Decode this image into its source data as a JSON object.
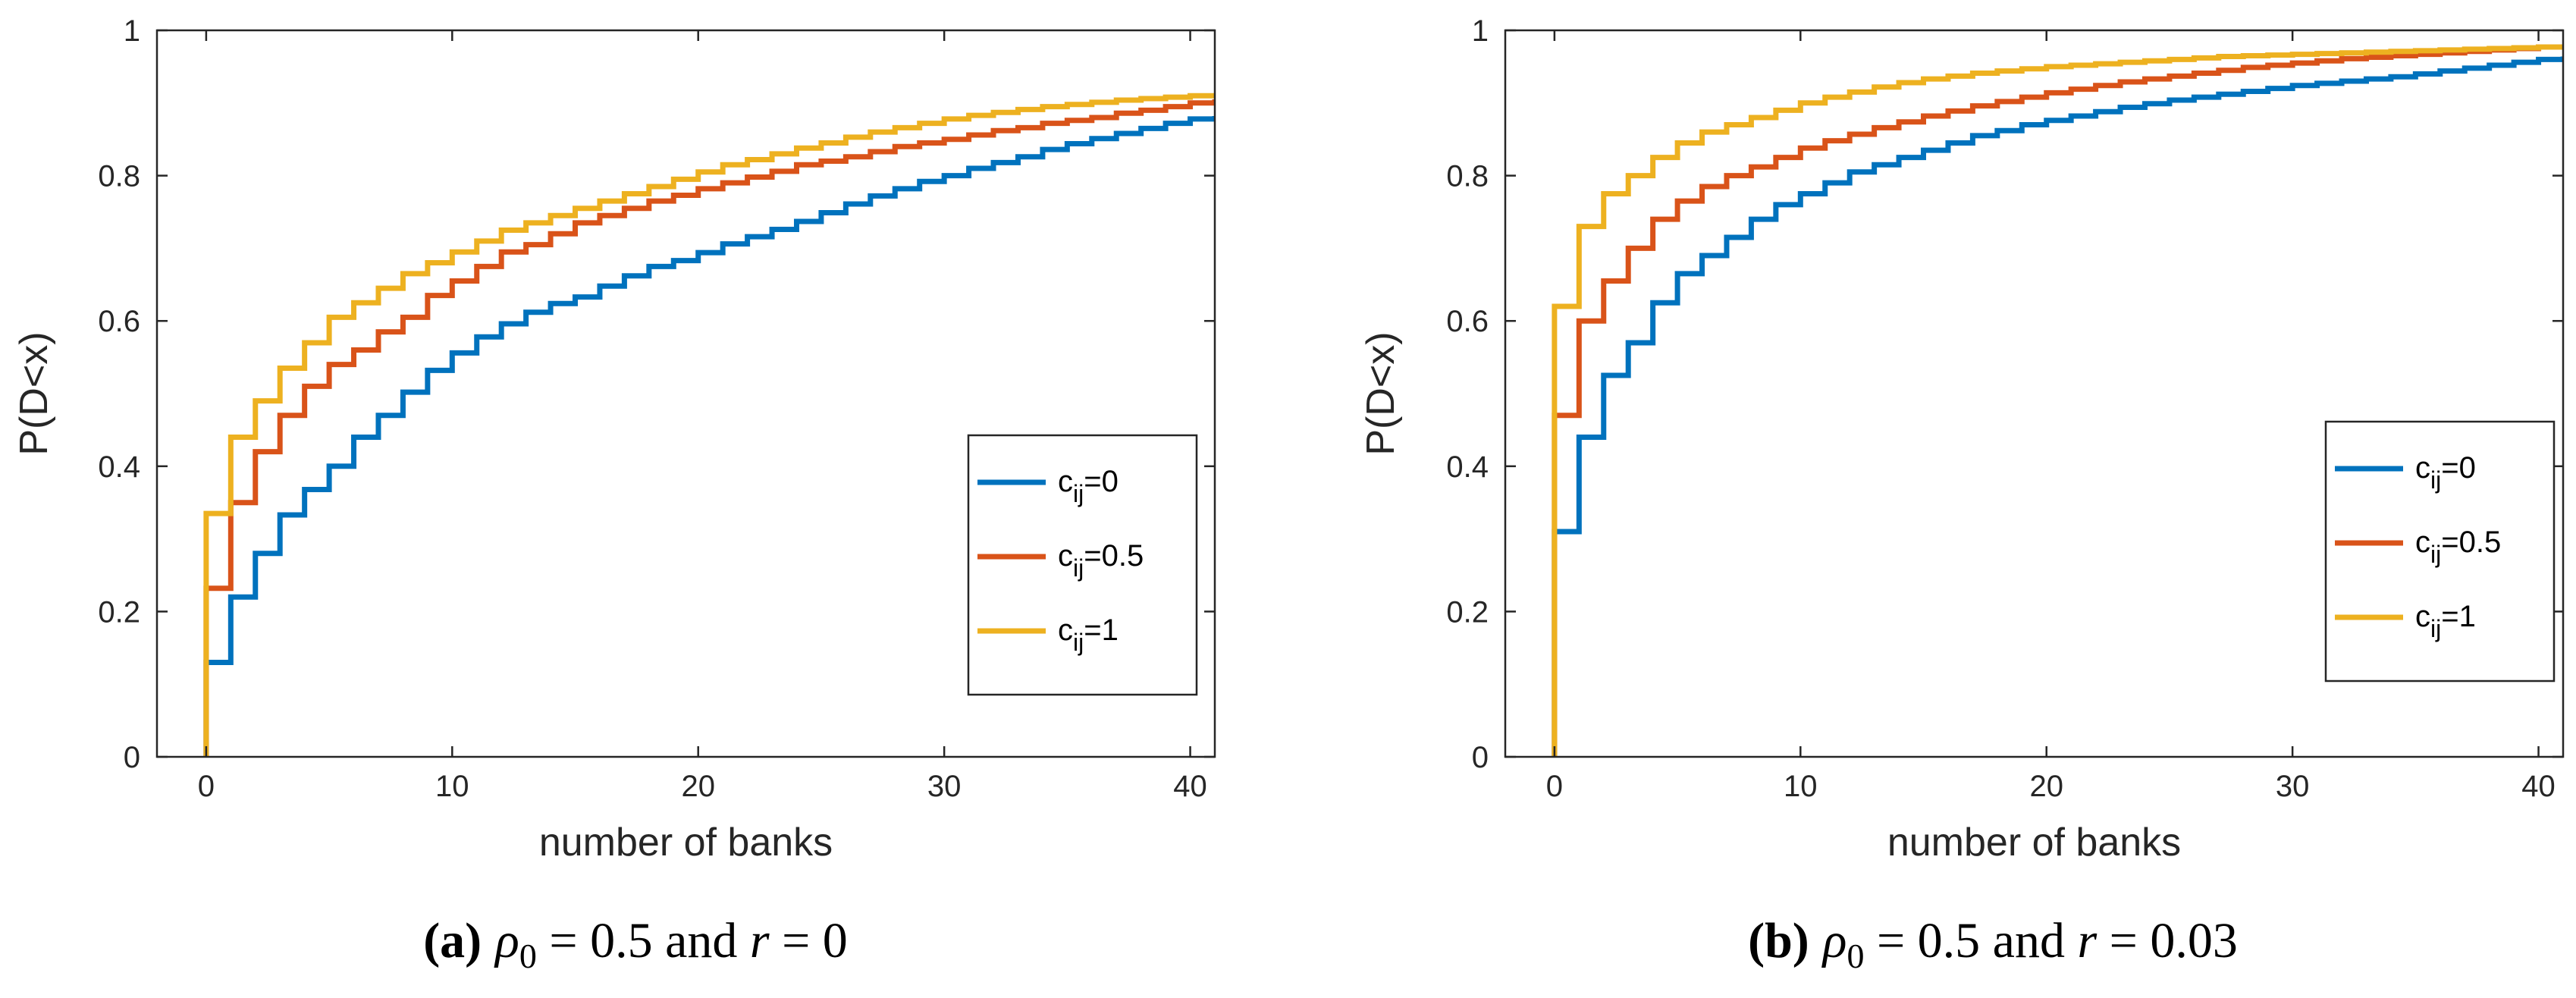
{
  "chart_data": [
    {
      "type": "line",
      "step": true,
      "caption": {
        "label": "(a)",
        "text_parts": [
          "ρ",
          "0",
          " = 0.5 and ",
          "r",
          " = 0"
        ]
      },
      "xlabel": "number of banks",
      "ylabel": "P(D<x)",
      "xlim": [
        -2,
        41
      ],
      "ylim": [
        0,
        1
      ],
      "xticks": [
        0,
        10,
        20,
        30,
        40
      ],
      "yticks": [
        0,
        0.2,
        0.4,
        0.6,
        0.8,
        1
      ],
      "ytick_labels": [
        "0",
        "0.2",
        "0.4",
        "0.6",
        "0.8",
        "1"
      ],
      "legend_position": "lower-right",
      "series": [
        {
          "name": "c_ij=0",
          "legend": {
            "base": "c",
            "sub": "ij",
            "rest": "=0"
          },
          "color": "#0072BD",
          "x": [
            0,
            1,
            2,
            3,
            4,
            5,
            6,
            7,
            8,
            9,
            10,
            11,
            12,
            13,
            14,
            15,
            16,
            17,
            18,
            19,
            20,
            21,
            22,
            23,
            24,
            25,
            26,
            27,
            28,
            29,
            30,
            31,
            32,
            33,
            34,
            35,
            36,
            37,
            38,
            39,
            40,
            41
          ],
          "values": [
            0.13,
            0.22,
            0.28,
            0.333,
            0.368,
            0.4,
            0.44,
            0.47,
            0.502,
            0.532,
            0.556,
            0.578,
            0.596,
            0.612,
            0.624,
            0.633,
            0.648,
            0.662,
            0.675,
            0.683,
            0.694,
            0.706,
            0.716,
            0.726,
            0.737,
            0.749,
            0.761,
            0.772,
            0.782,
            0.792,
            0.8,
            0.81,
            0.818,
            0.826,
            0.836,
            0.844,
            0.851,
            0.858,
            0.865,
            0.872,
            0.878,
            0.882
          ]
        },
        {
          "name": "c_ij=0.5",
          "legend": {
            "base": "c",
            "sub": "ij",
            "rest": "=0.5"
          },
          "color": "#D95319",
          "x": [
            0,
            1,
            2,
            3,
            4,
            5,
            6,
            7,
            8,
            9,
            10,
            11,
            12,
            13,
            14,
            15,
            16,
            17,
            18,
            19,
            20,
            21,
            22,
            23,
            24,
            25,
            26,
            27,
            28,
            29,
            30,
            31,
            32,
            33,
            34,
            35,
            36,
            37,
            38,
            39,
            40,
            41
          ],
          "values": [
            0.232,
            0.35,
            0.42,
            0.47,
            0.51,
            0.54,
            0.56,
            0.585,
            0.605,
            0.635,
            0.655,
            0.675,
            0.695,
            0.705,
            0.72,
            0.735,
            0.745,
            0.755,
            0.765,
            0.773,
            0.782,
            0.79,
            0.798,
            0.806,
            0.815,
            0.82,
            0.826,
            0.833,
            0.84,
            0.845,
            0.85,
            0.856,
            0.862,
            0.866,
            0.872,
            0.876,
            0.88,
            0.886,
            0.89,
            0.895,
            0.9,
            0.905
          ]
        },
        {
          "name": "c_ij=1",
          "legend": {
            "base": "c",
            "sub": "ij",
            "rest": "=1"
          },
          "color": "#EDB120",
          "x": [
            0,
            1,
            2,
            3,
            4,
            5,
            6,
            7,
            8,
            9,
            10,
            11,
            12,
            13,
            14,
            15,
            16,
            17,
            18,
            19,
            20,
            21,
            22,
            23,
            24,
            25,
            26,
            27,
            28,
            29,
            30,
            31,
            32,
            33,
            34,
            35,
            36,
            37,
            38,
            39,
            40,
            41
          ],
          "values": [
            0.335,
            0.44,
            0.49,
            0.535,
            0.57,
            0.605,
            0.625,
            0.645,
            0.665,
            0.68,
            0.695,
            0.71,
            0.725,
            0.735,
            0.745,
            0.755,
            0.765,
            0.775,
            0.785,
            0.795,
            0.805,
            0.815,
            0.822,
            0.83,
            0.838,
            0.845,
            0.853,
            0.86,
            0.866,
            0.872,
            0.878,
            0.883,
            0.887,
            0.891,
            0.895,
            0.898,
            0.901,
            0.904,
            0.906,
            0.908,
            0.91,
            0.912
          ]
        }
      ]
    },
    {
      "type": "line",
      "step": true,
      "caption": {
        "label": "(b)",
        "text_parts": [
          "ρ",
          "0",
          " = 0.5 and ",
          "r",
          " = 0.03"
        ]
      },
      "xlabel": "number of banks",
      "ylabel": "P(D<x)",
      "xlim": [
        -2,
        41
      ],
      "ylim": [
        0,
        1
      ],
      "xticks": [
        0,
        10,
        20,
        30,
        40
      ],
      "yticks": [
        0,
        0.2,
        0.4,
        0.6,
        0.8,
        1
      ],
      "ytick_labels": [
        "0",
        "0.2",
        "0.4",
        "0.6",
        "0.8",
        "1"
      ],
      "legend_position": "lower-right",
      "series": [
        {
          "name": "c_ij=0",
          "legend": {
            "base": "c",
            "sub": "ij",
            "rest": "=0"
          },
          "color": "#0072BD",
          "x": [
            0,
            1,
            2,
            3,
            4,
            5,
            6,
            7,
            8,
            9,
            10,
            11,
            12,
            13,
            14,
            15,
            16,
            17,
            18,
            19,
            20,
            21,
            22,
            23,
            24,
            25,
            26,
            27,
            28,
            29,
            30,
            31,
            32,
            33,
            34,
            35,
            36,
            37,
            38,
            39,
            40,
            41
          ],
          "values": [
            0.31,
            0.44,
            0.525,
            0.57,
            0.625,
            0.665,
            0.69,
            0.715,
            0.74,
            0.76,
            0.775,
            0.79,
            0.805,
            0.815,
            0.825,
            0.835,
            0.845,
            0.855,
            0.862,
            0.87,
            0.876,
            0.882,
            0.888,
            0.894,
            0.899,
            0.904,
            0.908,
            0.912,
            0.916,
            0.92,
            0.924,
            0.927,
            0.93,
            0.933,
            0.936,
            0.94,
            0.944,
            0.948,
            0.952,
            0.956,
            0.96,
            0.964
          ]
        },
        {
          "name": "c_ij=0.5",
          "legend": {
            "base": "c",
            "sub": "ij",
            "rest": "=0.5"
          },
          "color": "#D95319",
          "x": [
            0,
            1,
            2,
            3,
            4,
            5,
            6,
            7,
            8,
            9,
            10,
            11,
            12,
            13,
            14,
            15,
            16,
            17,
            18,
            19,
            20,
            21,
            22,
            23,
            24,
            25,
            26,
            27,
            28,
            29,
            30,
            31,
            32,
            33,
            34,
            35,
            36,
            37,
            38,
            39,
            40,
            41
          ],
          "values": [
            0.47,
            0.6,
            0.655,
            0.7,
            0.74,
            0.765,
            0.785,
            0.8,
            0.812,
            0.825,
            0.838,
            0.848,
            0.857,
            0.866,
            0.874,
            0.882,
            0.889,
            0.896,
            0.902,
            0.908,
            0.914,
            0.919,
            0.924,
            0.929,
            0.933,
            0.937,
            0.941,
            0.945,
            0.949,
            0.952,
            0.955,
            0.958,
            0.961,
            0.963,
            0.965,
            0.967,
            0.969,
            0.971,
            0.973,
            0.975,
            0.977,
            0.978
          ]
        },
        {
          "name": "c_ij=1",
          "legend": {
            "base": "c",
            "sub": "ij",
            "rest": "=1"
          },
          "color": "#EDB120",
          "x": [
            0,
            1,
            2,
            3,
            4,
            5,
            6,
            7,
            8,
            9,
            10,
            11,
            12,
            13,
            14,
            15,
            16,
            17,
            18,
            19,
            20,
            21,
            22,
            23,
            24,
            25,
            26,
            27,
            28,
            29,
            30,
            31,
            32,
            33,
            34,
            35,
            36,
            37,
            38,
            39,
            40,
            41
          ],
          "values": [
            0.62,
            0.73,
            0.775,
            0.8,
            0.825,
            0.845,
            0.86,
            0.87,
            0.88,
            0.89,
            0.9,
            0.908,
            0.915,
            0.922,
            0.928,
            0.933,
            0.937,
            0.941,
            0.944,
            0.947,
            0.95,
            0.952,
            0.954,
            0.956,
            0.958,
            0.96,
            0.962,
            0.964,
            0.965,
            0.966,
            0.967,
            0.968,
            0.969,
            0.97,
            0.971,
            0.972,
            0.973,
            0.974,
            0.975,
            0.976,
            0.977,
            0.978
          ]
        }
      ]
    }
  ]
}
